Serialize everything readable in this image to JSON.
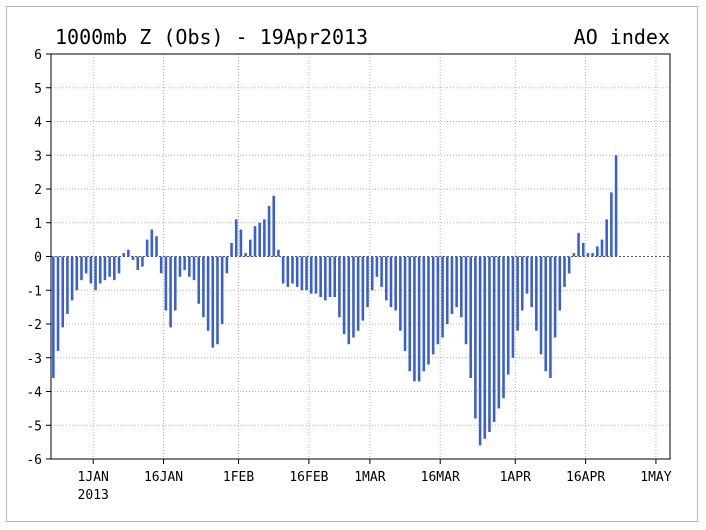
{
  "chart_data": {
    "type": "bar",
    "title": "1000mb Z (Obs) - 19Apr2013",
    "subtitle": "AO index",
    "xlabel": "",
    "ylabel": "",
    "ylim": [
      -6,
      6
    ],
    "yticks": [
      "-6",
      "-5",
      "-4",
      "-3",
      "-2",
      "-1",
      "0",
      "1",
      "2",
      "3",
      "4",
      "5",
      "6"
    ],
    "x_start": "2012-12-23",
    "x_end": "2013-05-04",
    "xticks": [
      {
        "label": "1JAN",
        "label2": "2013",
        "date": "2013-01-01"
      },
      {
        "label": "16JAN",
        "date": "2013-01-16"
      },
      {
        "label": "1FEB",
        "date": "2013-02-01"
      },
      {
        "label": "16FEB",
        "date": "2013-02-16"
      },
      {
        "label": "1MAR",
        "date": "2013-03-01"
      },
      {
        "label": "16MAR",
        "date": "2013-03-16"
      },
      {
        "label": "1APR",
        "date": "2013-04-01"
      },
      {
        "label": "16APR",
        "date": "2013-04-16"
      },
      {
        "label": "1MAY",
        "date": "2013-05-01"
      }
    ],
    "grid": true,
    "bar_color": "#3b5fcf",
    "series": [
      {
        "start_date": "2012-12-23",
        "values": [
          -3.6,
          -2.8,
          -2.1,
          -1.7,
          -1.3,
          -1.0,
          -0.7,
          -0.5,
          -0.8,
          -1.0,
          -0.8,
          -0.7,
          -0.6,
          -0.7,
          -0.5,
          0.1,
          0.2,
          -0.1,
          -0.4,
          -0.3,
          0.5,
          0.8,
          0.6,
          -0.5,
          -1.6,
          -2.1,
          -1.6,
          -0.6,
          -0.4,
          -0.6,
          -0.7,
          -1.4,
          -1.8,
          -2.2,
          -2.7,
          -2.6,
          -2.0,
          -0.5,
          0.4,
          1.1,
          0.8,
          0.1,
          0.5,
          0.9,
          1.0,
          1.1,
          1.5,
          1.8,
          0.2,
          -0.8,
          -0.9,
          -0.8,
          -0.9,
          -1.0,
          -1.0,
          -1.1,
          -1.1,
          -1.2,
          -1.3,
          -1.2,
          -1.2,
          -1.8,
          -2.3,
          -2.6,
          -2.4,
          -2.2,
          -1.9,
          -1.5,
          -1.0,
          -0.6,
          -0.9,
          -1.3,
          -1.5,
          -1.6,
          -2.2,
          -2.8,
          -3.4,
          -3.7,
          -3.7,
          -3.4,
          -3.2,
          -2.9,
          -2.6,
          -2.4,
          -2.0,
          -1.7,
          -1.5,
          -1.8,
          -2.6,
          -3.6,
          -4.8,
          -5.6,
          -5.4,
          -5.2,
          -4.9,
          -4.5,
          -4.2,
          -3.5,
          -3.0,
          -2.2,
          -1.6,
          -1.1,
          -1.5,
          -2.2,
          -2.9,
          -3.4,
          -3.6,
          -2.4,
          -1.6,
          -0.9,
          -0.5,
          0.1,
          0.7,
          0.4,
          0.1,
          0.1,
          0.3,
          0.5,
          1.1,
          1.9,
          3.0
        ]
      }
    ]
  }
}
